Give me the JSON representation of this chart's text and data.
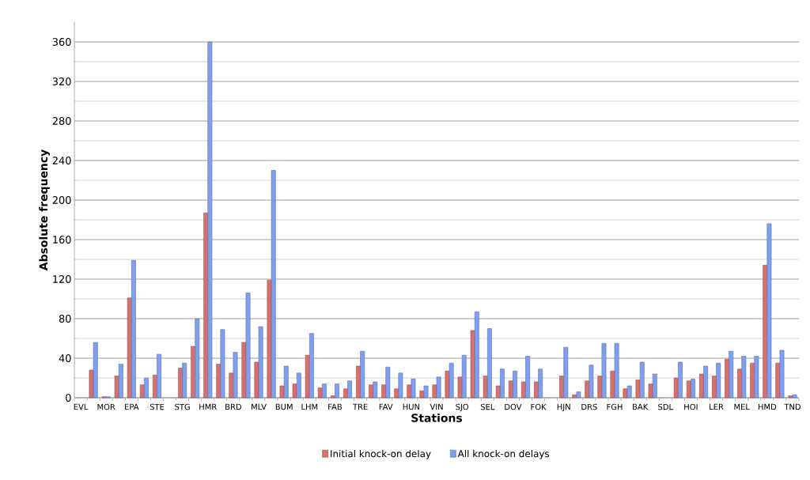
{
  "chart_data": {
    "type": "bar",
    "xlabel": "Stations",
    "ylabel": "Absolute frequency",
    "categories": [
      "EVL",
      null,
      "MOR",
      null,
      "EPA",
      null,
      "STE",
      null,
      "STG",
      null,
      "HMR",
      null,
      "BRD",
      null,
      "MLV",
      null,
      "BUM",
      null,
      "LHM",
      null,
      "FAB",
      null,
      "TRE",
      null,
      "FAV",
      null,
      "HUN",
      null,
      "VIN",
      null,
      "SJO",
      null,
      "SEL",
      null,
      "DOV",
      null,
      "FOK",
      null,
      "HJN",
      null,
      "DRS",
      null,
      "FGH",
      null,
      "BAK",
      null,
      "SDL",
      null,
      "HOI",
      null,
      "LER",
      null,
      "MEL",
      null,
      "HMD",
      null,
      "TND"
    ],
    "series": [
      {
        "name": "Initial knock-on delay",
        "color": "#d9706c",
        "values": [
          null,
          28,
          1,
          22,
          101,
          13,
          23,
          null,
          30,
          52,
          187,
          34,
          25,
          56,
          36,
          119,
          12,
          14,
          43,
          10,
          2,
          9,
          32,
          13,
          13,
          9,
          13,
          7,
          13,
          27,
          21,
          68,
          22,
          12,
          17,
          16,
          16,
          null,
          22,
          3,
          17,
          22,
          27,
          9,
          18,
          14,
          null,
          20,
          17,
          24,
          22,
          39,
          29,
          35,
          134,
          35,
          2
        ]
      },
      {
        "name": "All knock-on delays",
        "color": "#7f9ff0",
        "values": [
          null,
          56,
          1,
          34,
          139,
          20,
          44,
          null,
          35,
          80,
          360,
          69,
          46,
          106,
          72,
          230,
          32,
          25,
          65,
          14,
          14,
          17,
          47,
          16,
          31,
          25,
          19,
          12,
          21,
          35,
          43,
          87,
          70,
          29,
          27,
          42,
          29,
          null,
          51,
          6,
          33,
          55,
          55,
          12,
          36,
          24,
          null,
          36,
          19,
          32,
          35,
          47,
          42,
          42,
          176,
          48,
          3
        ]
      }
    ],
    "ylim": [
      0,
      380
    ],
    "yticks": [
      0,
      40,
      80,
      120,
      160,
      200,
      240,
      280,
      320,
      360
    ],
    "grid": "y",
    "legend": "bottom"
  }
}
